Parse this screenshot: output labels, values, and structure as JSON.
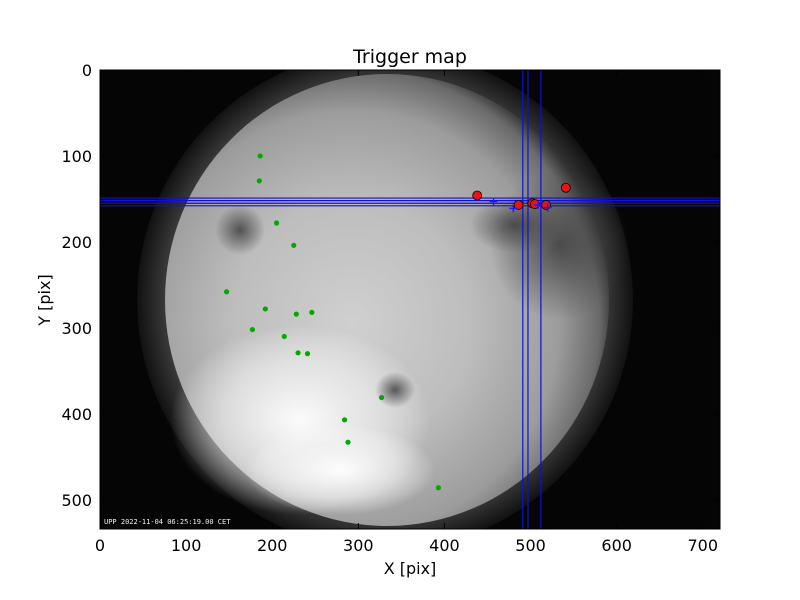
{
  "chart_data": {
    "type": "scatter",
    "title": "Trigger map",
    "xlabel": "X [pix]",
    "ylabel": "Y [pix]",
    "xlim": [
      0,
      720
    ],
    "ylim": [
      534,
      0
    ],
    "xticks": [
      0,
      100,
      200,
      300,
      400,
      500,
      600,
      700
    ],
    "yticks": [
      0,
      100,
      200,
      300,
      400,
      500
    ],
    "grid": false,
    "background": "fisheye all-sky camera image",
    "timestamp_text": "UPP 2022-11-04 06:25:19.00 CET",
    "series": [
      {
        "marker": "small-green-dot",
        "color": "#00aa00",
        "points": [
          {
            "x": 186,
            "y": 100
          },
          {
            "x": 185,
            "y": 129
          },
          {
            "x": 205,
            "y": 178
          },
          {
            "x": 225,
            "y": 204
          },
          {
            "x": 147,
            "y": 258
          },
          {
            "x": 192,
            "y": 278
          },
          {
            "x": 228,
            "y": 284
          },
          {
            "x": 246,
            "y": 282
          },
          {
            "x": 177,
            "y": 302
          },
          {
            "x": 214,
            "y": 310
          },
          {
            "x": 230,
            "y": 329
          },
          {
            "x": 241,
            "y": 330
          },
          {
            "x": 327,
            "y": 381
          },
          {
            "x": 284,
            "y": 407
          },
          {
            "x": 288,
            "y": 433
          },
          {
            "x": 393,
            "y": 486
          }
        ]
      },
      {
        "marker": "large-red-dot",
        "color": "#ee1111",
        "points": [
          {
            "x": 438,
            "y": 146
          },
          {
            "x": 486,
            "y": 157
          },
          {
            "x": 502,
            "y": 155
          },
          {
            "x": 505,
            "y": 156
          },
          {
            "x": 518,
            "y": 157
          },
          {
            "x": 541,
            "y": 137
          }
        ]
      },
      {
        "marker": "small-blue-cross",
        "color": "#1a1aff",
        "points": [
          {
            "x": 457,
            "y": 153
          },
          {
            "x": 480,
            "y": 161
          },
          {
            "x": 509,
            "y": 157
          },
          {
            "x": 520,
            "y": 160
          }
        ]
      }
    ],
    "reference_lines": {
      "color": "#1010d8",
      "horizontal_y": [
        149,
        152,
        155,
        158
      ],
      "vertical_x": [
        491,
        497,
        512
      ]
    }
  }
}
